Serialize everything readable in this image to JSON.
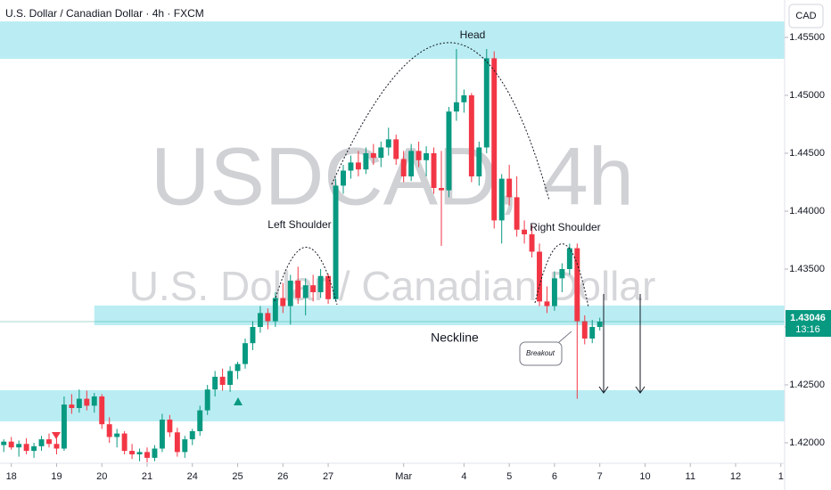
{
  "chart_data": {
    "type": "candlestick",
    "title": "U.S. Dollar / Canadian Dollar · 4h · FXCM",
    "currency": "CAD",
    "watermark": {
      "symbol": "USDCAD, 4h",
      "description": "U.S. Dollar / Canadian Dollar"
    },
    "up_color": "#089981",
    "down_color": "#f23645",
    "zone_color": "#b2ebf2",
    "xlim": [
      -0.5,
      103.5
    ],
    "xticks": [
      {
        "value": 1,
        "label": "18"
      },
      {
        "value": 7,
        "label": "19"
      },
      {
        "value": 13,
        "label": "20"
      },
      {
        "value": 19,
        "label": "21"
      },
      {
        "value": 25,
        "label": "24"
      },
      {
        "value": 31,
        "label": "25"
      },
      {
        "value": 37,
        "label": "26"
      },
      {
        "value": 43,
        "label": "27"
      },
      {
        "value": 53,
        "label": "Mar"
      },
      {
        "value": 61,
        "label": "4"
      },
      {
        "value": 67,
        "label": "5"
      },
      {
        "value": 73,
        "label": "6"
      },
      {
        "value": 79,
        "label": "7"
      },
      {
        "value": 85,
        "label": "10"
      },
      {
        "value": 91,
        "label": "11"
      },
      {
        "value": 97,
        "label": "12"
      },
      {
        "value": 103,
        "label": "1"
      }
    ],
    "ylim": [
      1.41823,
      1.45823
    ],
    "yticks": [
      {
        "value": 1.42,
        "label": "1.42000"
      },
      {
        "value": 1.425,
        "label": "1.42500"
      },
      {
        "value": 1.43,
        "label": "1.43000"
      },
      {
        "value": 1.435,
        "label": "1.43500"
      },
      {
        "value": 1.44,
        "label": "1.44000"
      },
      {
        "value": 1.445,
        "label": "1.44500"
      },
      {
        "value": 1.45,
        "label": "1.45000"
      },
      {
        "value": 1.455,
        "label": "1.45500"
      }
    ],
    "last_price": 1.43046,
    "countdown": "13:16",
    "zones": [
      {
        "from": 1.45315,
        "to": 1.45638
      },
      {
        "from": 1.43015,
        "to": 1.43185,
        "start": 12
      },
      {
        "from": 1.42185,
        "to": 1.42454
      }
    ],
    "annotations": {
      "head": "Head",
      "left_shoulder": "Left Shoulder",
      "right_shoulder": "Right Shoulder",
      "neckline": "Neckline",
      "breakout": "Breakout"
    },
    "ohlc": [
      [
        1.4198,
        1.4203,
        1.4192,
        1.4201
      ],
      [
        1.4201,
        1.4205,
        1.4194,
        1.4196
      ],
      [
        1.4196,
        1.4202,
        1.4188,
        1.4199
      ],
      [
        1.4199,
        1.4204,
        1.419,
        1.4193
      ],
      [
        1.4193,
        1.42,
        1.4187,
        1.4197
      ],
      [
        1.4197,
        1.4206,
        1.4193,
        1.4203
      ],
      [
        1.4203,
        1.4208,
        1.4196,
        1.4199
      ],
      [
        1.4199,
        1.4204,
        1.419,
        1.4195
      ],
      [
        1.4195,
        1.424,
        1.4193,
        1.4233
      ],
      [
        1.4233,
        1.4242,
        1.4225,
        1.423
      ],
      [
        1.423,
        1.4246,
        1.4226,
        1.4238
      ],
      [
        1.4238,
        1.4245,
        1.4228,
        1.4232
      ],
      [
        1.4232,
        1.4243,
        1.4226,
        1.424
      ],
      [
        1.424,
        1.4242,
        1.4212,
        1.4216
      ],
      [
        1.4216,
        1.4222,
        1.42,
        1.4205
      ],
      [
        1.4205,
        1.4212,
        1.4196,
        1.4208
      ],
      [
        1.4208,
        1.421,
        1.419,
        1.4193
      ],
      [
        1.4193,
        1.4199,
        1.4186,
        1.419
      ],
      [
        1.419,
        1.4195,
        1.4184,
        1.4192
      ],
      [
        1.4192,
        1.4196,
        1.4183,
        1.4187
      ],
      [
        1.4187,
        1.4198,
        1.4184,
        1.4195
      ],
      [
        1.4195,
        1.4225,
        1.4192,
        1.422
      ],
      [
        1.422,
        1.4224,
        1.4205,
        1.4209
      ],
      [
        1.4209,
        1.4213,
        1.4188,
        1.4192
      ],
      [
        1.4192,
        1.4206,
        1.4187,
        1.4203
      ],
      [
        1.4203,
        1.4212,
        1.4198,
        1.421
      ],
      [
        1.421,
        1.4232,
        1.4206,
        1.4228
      ],
      [
        1.4228,
        1.425,
        1.4224,
        1.4246
      ],
      [
        1.4246,
        1.4262,
        1.424,
        1.4257
      ],
      [
        1.4257,
        1.4264,
        1.4245,
        1.425
      ],
      [
        1.425,
        1.4266,
        1.4244,
        1.4262
      ],
      [
        1.4262,
        1.427,
        1.4255,
        1.4268
      ],
      [
        1.4268,
        1.429,
        1.4264,
        1.4286
      ],
      [
        1.4286,
        1.4305,
        1.428,
        1.43
      ],
      [
        1.43,
        1.4318,
        1.4295,
        1.4312
      ],
      [
        1.4312,
        1.4316,
        1.4298,
        1.4305
      ],
      [
        1.4305,
        1.433,
        1.43,
        1.4325
      ],
      [
        1.4325,
        1.4338,
        1.4312,
        1.4318
      ],
      [
        1.4318,
        1.4345,
        1.4302,
        1.434
      ],
      [
        1.434,
        1.4352,
        1.432,
        1.4325
      ],
      [
        1.4325,
        1.4342,
        1.431,
        1.4336
      ],
      [
        1.4336,
        1.4345,
        1.4322,
        1.433
      ],
      [
        1.433,
        1.435,
        1.4325,
        1.4344
      ],
      [
        1.4344,
        1.4346,
        1.432,
        1.4324
      ],
      [
        1.4324,
        1.4428,
        1.4322,
        1.4422
      ],
      [
        1.4422,
        1.444,
        1.4415,
        1.4435
      ],
      [
        1.4435,
        1.4448,
        1.4428,
        1.4442
      ],
      [
        1.4442,
        1.4452,
        1.443,
        1.4436
      ],
      [
        1.4436,
        1.4455,
        1.4432,
        1.445
      ],
      [
        1.445,
        1.4458,
        1.444,
        1.4446
      ],
      [
        1.4446,
        1.446,
        1.4438,
        1.4455
      ],
      [
        1.4455,
        1.4472,
        1.4448,
        1.4462
      ],
      [
        1.4462,
        1.4466,
        1.444,
        1.4445
      ],
      [
        1.4445,
        1.4452,
        1.4425,
        1.443
      ],
      [
        1.443,
        1.4458,
        1.4426,
        1.4452
      ],
      [
        1.4452,
        1.446,
        1.4438,
        1.4444
      ],
      [
        1.4444,
        1.4456,
        1.443,
        1.445
      ],
      [
        1.445,
        1.4455,
        1.4415,
        1.442
      ],
      [
        1.442,
        1.4452,
        1.437,
        1.4418
      ],
      [
        1.4418,
        1.449,
        1.4412,
        1.4486
      ],
      [
        1.4486,
        1.454,
        1.4478,
        1.4494
      ],
      [
        1.4494,
        1.4505,
        1.4485,
        1.45
      ],
      [
        1.45,
        1.4502,
        1.4425,
        1.443
      ],
      [
        1.443,
        1.446,
        1.4422,
        1.4455
      ],
      [
        1.4455,
        1.454,
        1.445,
        1.4532
      ],
      [
        1.4532,
        1.4538,
        1.4385,
        1.4392
      ],
      [
        1.4392,
        1.4432,
        1.4372,
        1.4428
      ],
      [
        1.4428,
        1.444,
        1.4405,
        1.4412
      ],
      [
        1.4412,
        1.443,
        1.4378,
        1.4384
      ],
      [
        1.4384,
        1.4392,
        1.4372,
        1.438
      ],
      [
        1.438,
        1.4388,
        1.436,
        1.4365
      ],
      [
        1.4365,
        1.4372,
        1.4318,
        1.4322
      ],
      [
        1.4322,
        1.4335,
        1.4312,
        1.4318
      ],
      [
        1.4318,
        1.4348,
        1.4314,
        1.4342
      ],
      [
        1.4342,
        1.4355,
        1.433,
        1.435
      ],
      [
        1.435,
        1.4372,
        1.4345,
        1.4368
      ],
      [
        1.4368,
        1.4372,
        1.4238,
        1.4305
      ],
      [
        1.4305,
        1.431,
        1.4285,
        1.429
      ],
      [
        1.429,
        1.4306,
        1.4286,
        1.43
      ],
      [
        1.43,
        1.4308,
        1.4297,
        1.43046
      ]
    ]
  }
}
